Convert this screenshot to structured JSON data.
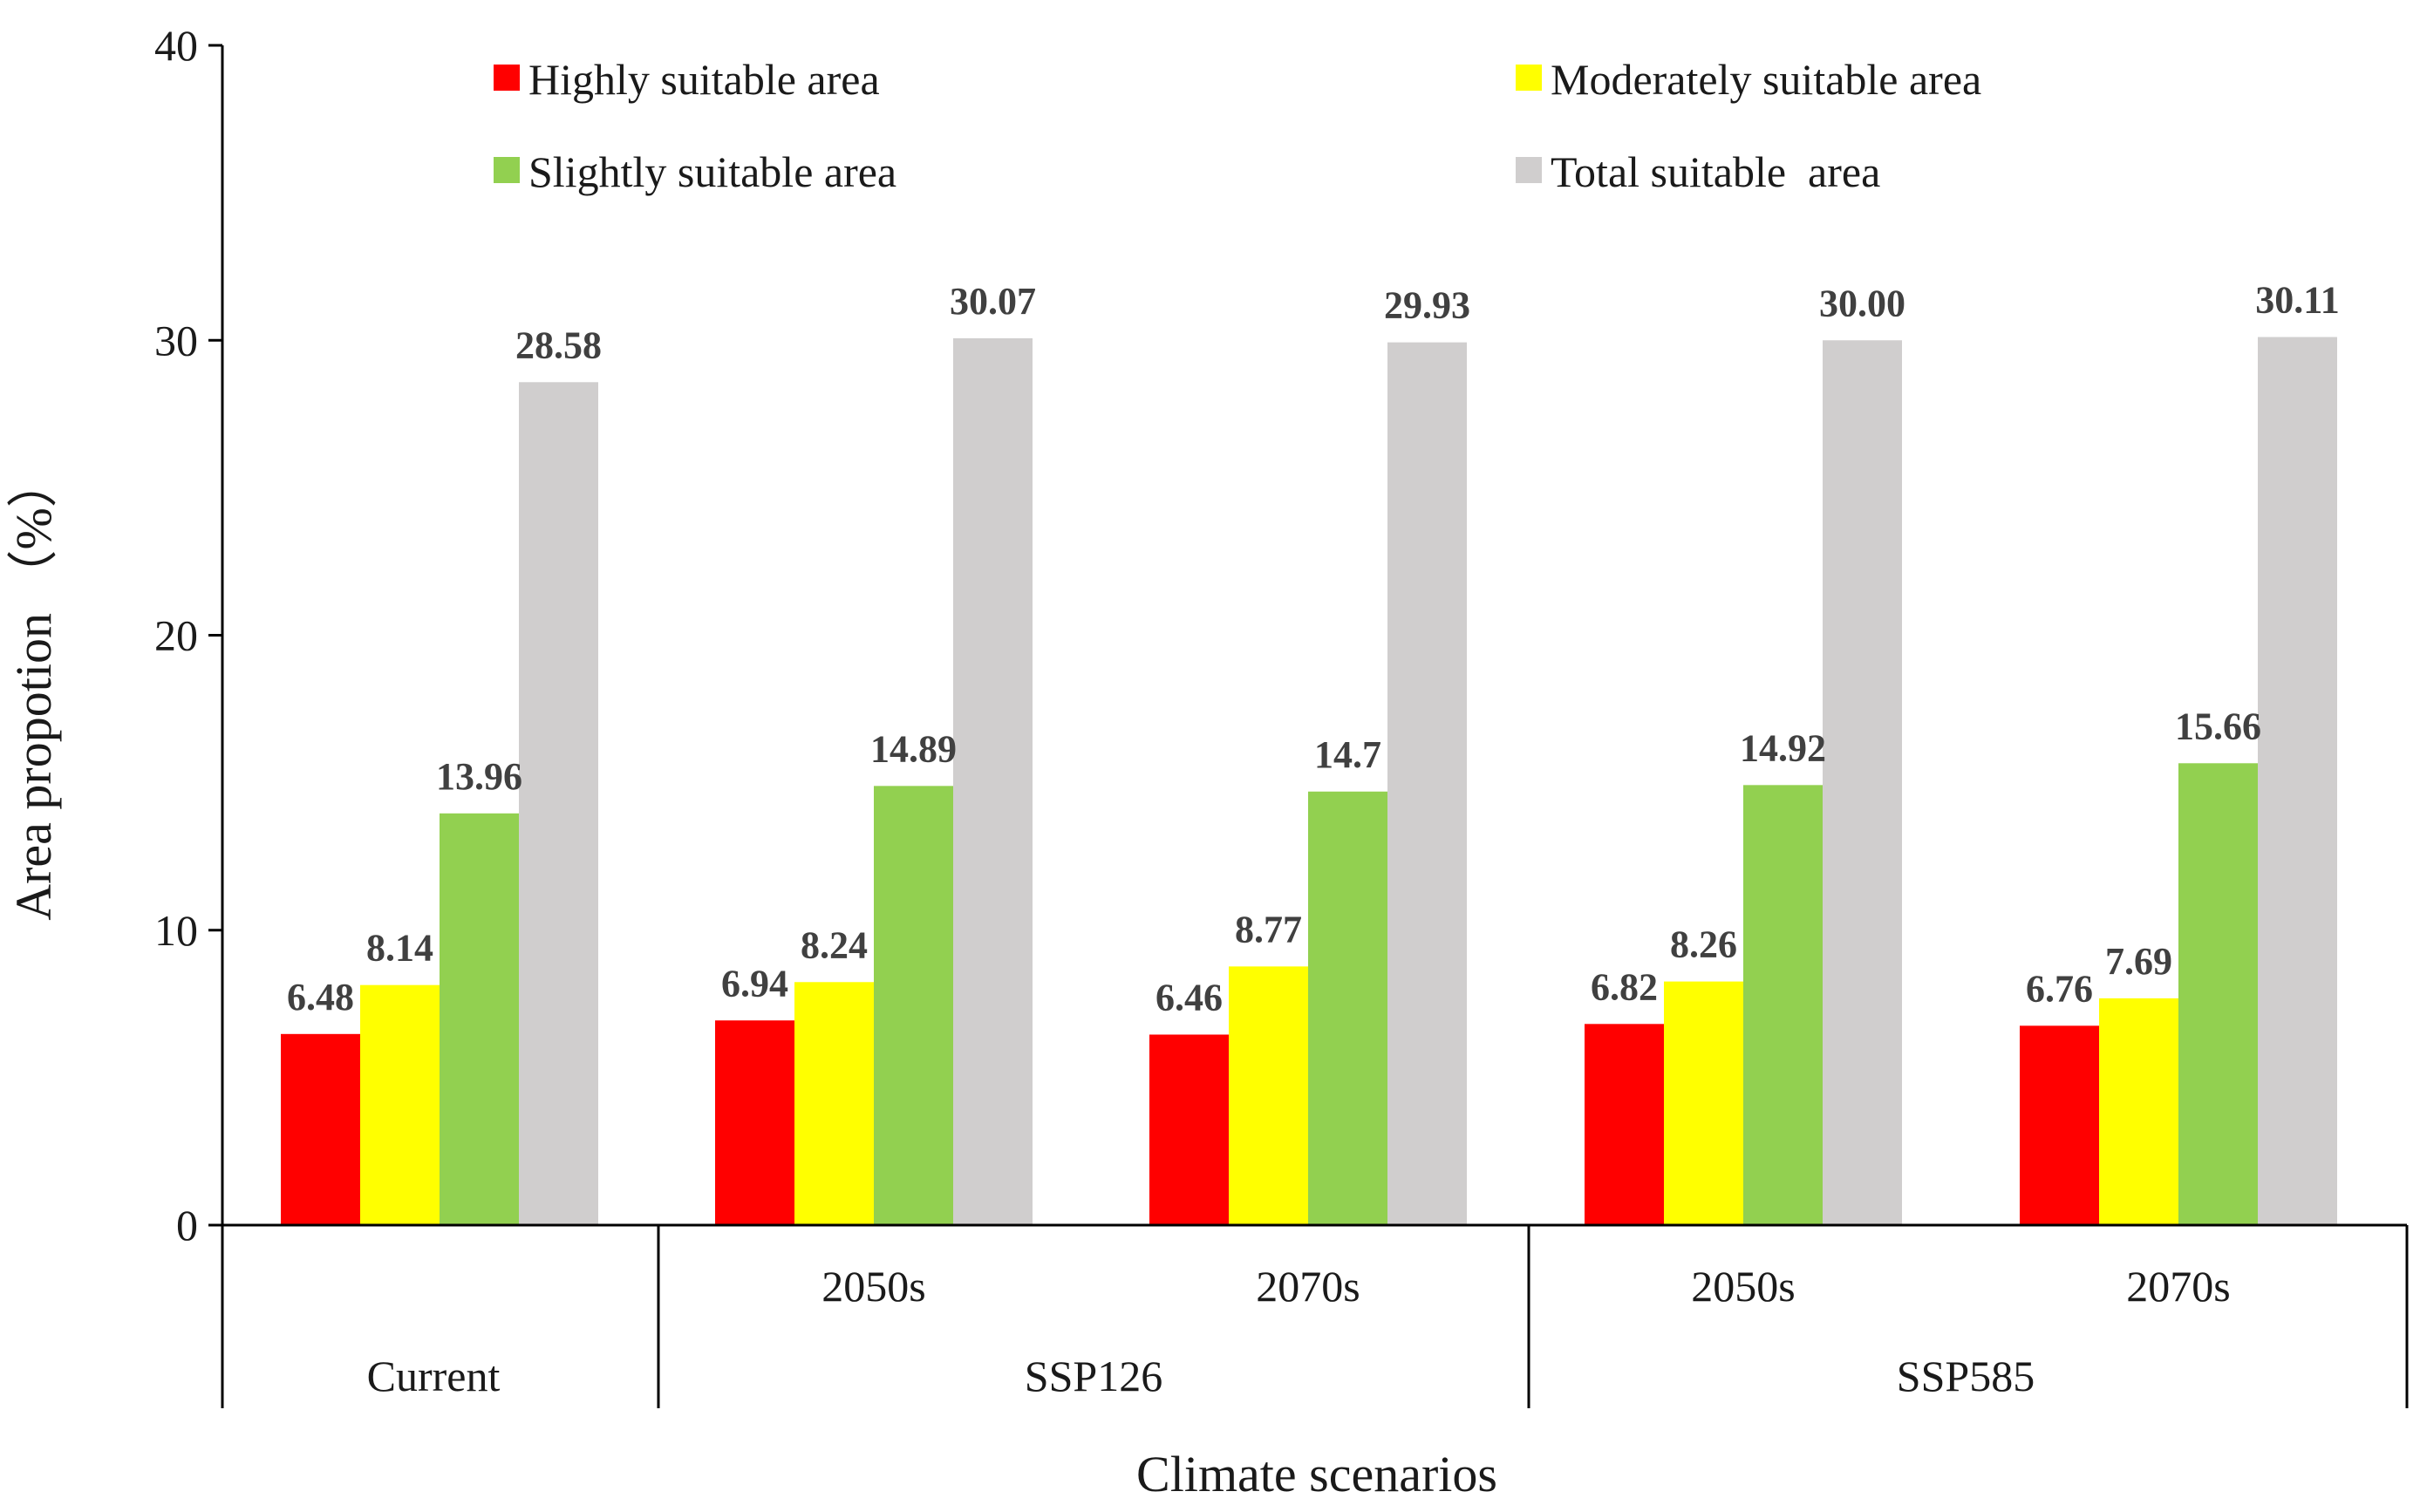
{
  "chart_data": {
    "type": "bar",
    "ylabel": "Area propotion （%）",
    "xlabel": "Climate scenarios",
    "ylim": [
      0,
      40
    ],
    "yticks": [
      0,
      10,
      20,
      30,
      40
    ],
    "grid": false,
    "legend_position": "top",
    "categories": [
      "Current",
      "2050s",
      "2070s",
      "2050s",
      "2070s"
    ],
    "groups": [
      {
        "label": "",
        "categories": [
          "Current"
        ]
      },
      {
        "label": "SSP126",
        "categories": [
          "2050s",
          "2070s"
        ]
      },
      {
        "label": "SSP585",
        "categories": [
          "2050s",
          "2070s"
        ]
      }
    ],
    "group_bottom_labels": [
      "Current",
      "SSP126",
      "SSP585"
    ],
    "series": [
      {
        "name": "Highly suitable area",
        "color": "#ff0000",
        "values": [
          6.48,
          6.94,
          6.46,
          6.82,
          6.76
        ],
        "labels": [
          "6.48",
          "6.94",
          "6.46",
          "6.82",
          "6.76"
        ]
      },
      {
        "name": "Moderately suitable area",
        "color": "#ffff00",
        "values": [
          8.14,
          8.24,
          8.77,
          8.26,
          7.69
        ],
        "labels": [
          "8.14",
          "8.24",
          "8.77",
          "8.26",
          "7.69"
        ]
      },
      {
        "name": "Slightly suitable area",
        "color": "#92d050",
        "values": [
          13.96,
          14.89,
          14.7,
          14.92,
          15.66
        ],
        "labels": [
          "13.96",
          "14.89",
          "14.7",
          "14.92",
          "15.66"
        ]
      },
      {
        "name": "Total suitable  area",
        "color": "#d0cece",
        "values": [
          28.58,
          30.07,
          29.93,
          30.0,
          30.11
        ],
        "labels": [
          "28.58",
          "30.07",
          "29.93",
          "30.00",
          "30.11"
        ]
      }
    ]
  }
}
